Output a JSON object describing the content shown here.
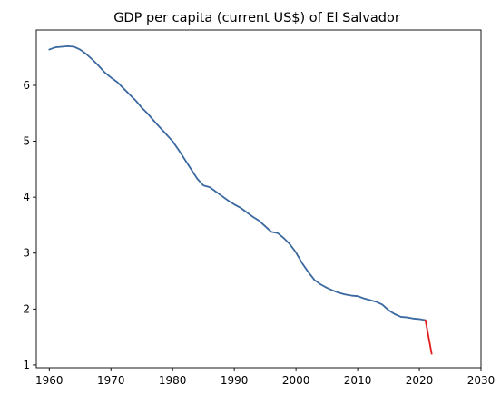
{
  "chart_data": {
    "type": "line",
    "title": "GDP per capita (current US$) of El Salvador",
    "xlabel": "",
    "ylabel": "",
    "xlim": [
      1957.9,
      2030.0
    ],
    "ylim": [
      0.95,
      6.99
    ],
    "xticks": [
      1960,
      1970,
      1980,
      1990,
      2000,
      2010,
      2020,
      2030
    ],
    "yticks": [
      1,
      2,
      3,
      4,
      5,
      6
    ],
    "grid": false,
    "legend": "none",
    "series": [
      {
        "color": "#3a68a0",
        "x": [
          1960,
          1961,
          1962,
          1963,
          1964,
          1965,
          1966,
          1967,
          1968,
          1969,
          1970,
          1971,
          1972,
          1973,
          1974,
          1975,
          1976,
          1977,
          1978,
          1979,
          1980,
          1981,
          1982,
          1983,
          1984,
          1985,
          1986,
          1987,
          1988,
          1989,
          1990,
          1991,
          1992,
          1993,
          1994,
          1995,
          1996,
          1997,
          1998,
          1999,
          2000,
          2001,
          2002,
          2003,
          2004,
          2005,
          2006,
          2007,
          2008,
          2009,
          2010,
          2011,
          2012,
          2013,
          2014,
          2015,
          2016,
          2017,
          2018,
          2019,
          2020,
          2021
        ],
        "y": [
          6.64,
          6.68,
          6.69,
          6.7,
          6.69,
          6.64,
          6.56,
          6.46,
          6.35,
          6.23,
          6.14,
          6.06,
          5.95,
          5.84,
          5.73,
          5.6,
          5.49,
          5.36,
          5.24,
          5.12,
          5.0,
          4.84,
          4.67,
          4.5,
          4.33,
          4.21,
          4.18,
          4.1,
          4.02,
          3.94,
          3.87,
          3.81,
          3.73,
          3.65,
          3.58,
          3.48,
          3.38,
          3.36,
          3.27,
          3.16,
          3.01,
          2.82,
          2.66,
          2.52,
          2.44,
          2.38,
          2.33,
          2.29,
          2.26,
          2.24,
          2.23,
          2.19,
          2.16,
          2.13,
          2.08,
          1.98,
          1.91,
          1.86,
          1.85,
          1.83,
          1.82,
          1.8
        ]
      },
      {
        "color": "#e31a1c",
        "x": [
          2021,
          2022
        ],
        "y": [
          1.8,
          1.2
        ]
      }
    ]
  }
}
